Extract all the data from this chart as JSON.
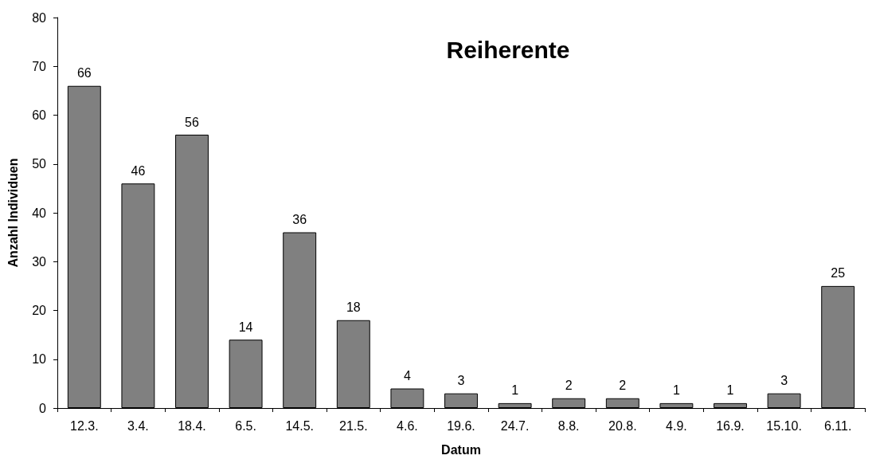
{
  "chart_data": {
    "type": "bar",
    "title": "Reiherente",
    "xlabel": "Datum",
    "ylabel": "Anzahl Individuen",
    "categories": [
      "12.3.",
      "3.4.",
      "18.4.",
      "6.5.",
      "14.5.",
      "21.5.",
      "4.6.",
      "19.6.",
      "24.7.",
      "8.8.",
      "20.8.",
      "4.9.",
      "16.9.",
      "15.10.",
      "6.11."
    ],
    "values": [
      66,
      46,
      56,
      14,
      36,
      18,
      4,
      3,
      1,
      2,
      2,
      1,
      1,
      3,
      25
    ],
    "color": "#808080",
    "ylim": [
      0,
      80
    ],
    "yticks": [
      0,
      10,
      20,
      30,
      40,
      50,
      60,
      70,
      80
    ],
    "data_labels": true,
    "grid": false
  }
}
